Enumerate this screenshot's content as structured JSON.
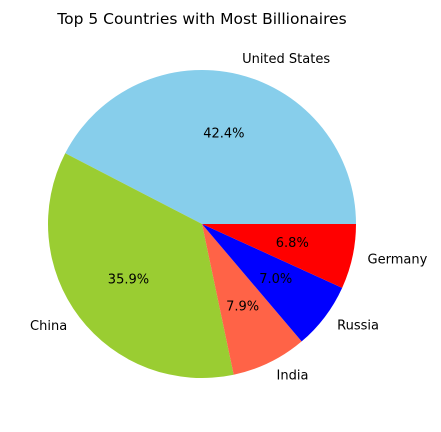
{
  "chart_data": {
    "type": "pie",
    "title": "Top 5 Countries with Most Billionaires",
    "slices": [
      {
        "label": "United States",
        "value": 42.4,
        "pct_label": "42.4%",
        "color": "#87CEEB"
      },
      {
        "label": "China",
        "value": 35.9,
        "pct_label": "35.9%",
        "color": "#9ACD32"
      },
      {
        "label": "India",
        "value": 7.9,
        "pct_label": "7.9%",
        "color": "#FF6347"
      },
      {
        "label": "Russia",
        "value": 7.0,
        "pct_label": "7.0%",
        "color": "#0000FF"
      },
      {
        "label": "Germany",
        "value": 6.8,
        "pct_label": "6.8%",
        "color": "#FF0000"
      }
    ],
    "start_angle_deg": 0,
    "direction": "counterclockwise",
    "legend": "none"
  }
}
